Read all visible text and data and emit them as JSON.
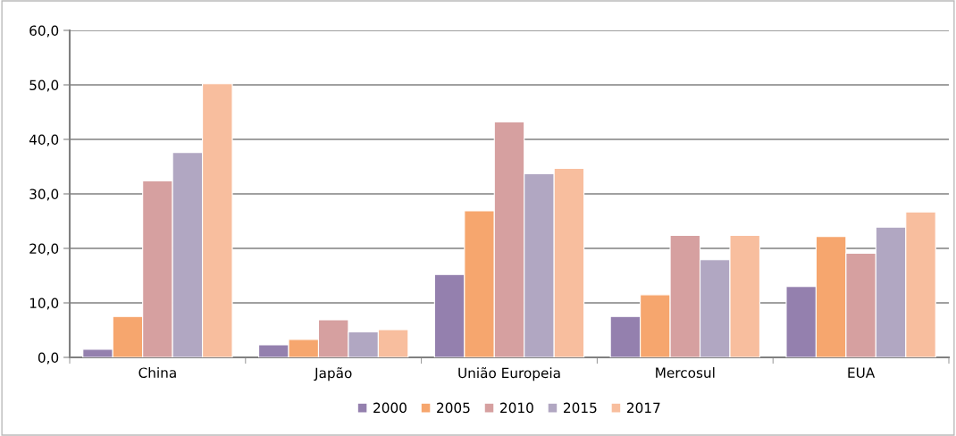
{
  "chart_data": {
    "type": "bar",
    "categories": [
      "China",
      "Japão",
      "União Europeia",
      "Mercosul",
      "EUA"
    ],
    "series": [
      {
        "name": "2000",
        "color": "#9480ae",
        "values": [
          1.5,
          2.3,
          15.2,
          7.5,
          13.0
        ]
      },
      {
        "name": "2005",
        "color": "#f6a66e",
        "values": [
          7.5,
          3.3,
          26.9,
          11.5,
          22.2
        ]
      },
      {
        "name": "2010",
        "color": "#d6a0a0",
        "values": [
          32.4,
          6.9,
          43.2,
          22.4,
          19.1
        ]
      },
      {
        "name": "2015",
        "color": "#b1a7c2",
        "values": [
          37.6,
          4.7,
          33.7,
          17.9,
          23.9
        ]
      },
      {
        "name": "2017",
        "color": "#f8be9e",
        "values": [
          50.2,
          5.1,
          34.7,
          22.4,
          26.7
        ]
      }
    ],
    "ylim": [
      0,
      60
    ],
    "yticks": [
      {
        "value": 0,
        "label": "0,0"
      },
      {
        "value": 10,
        "label": "10,0"
      },
      {
        "value": 20,
        "label": "20,0"
      },
      {
        "value": 30,
        "label": "30,0"
      },
      {
        "value": 40,
        "label": "40,0"
      },
      {
        "value": 50,
        "label": "50,0"
      },
      {
        "value": 60,
        "label": "60,0"
      }
    ],
    "grid": "y",
    "legend": "bottom"
  }
}
